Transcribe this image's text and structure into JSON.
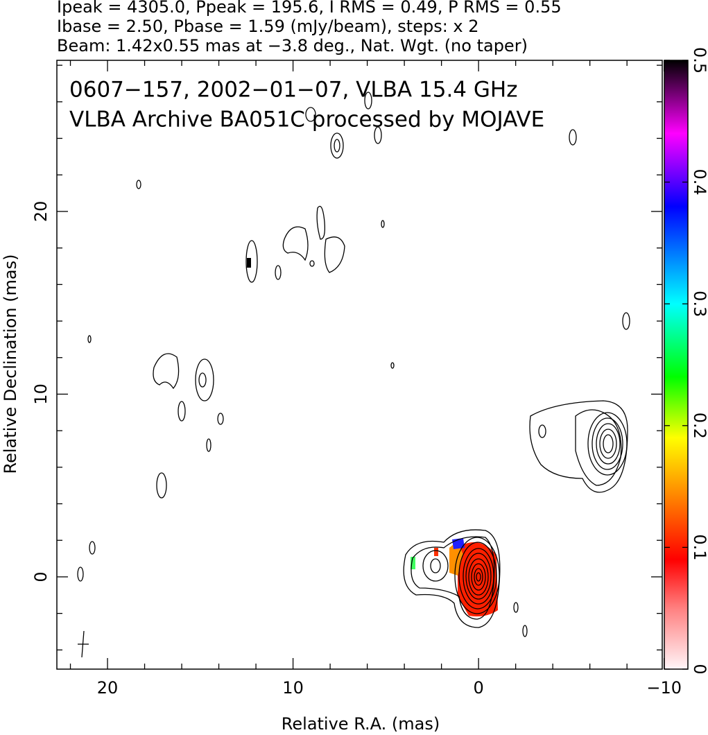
{
  "chart_data": {
    "type": "contour-map",
    "title_lines": [
      "Ipeak = 4305.0, Ppeak = 195.6, I RMS = 0.49, P RMS = 0.55",
      "Ibase = 2.50, Pbase = 1.59 (mJy/beam), steps: x 2",
      "Beam: 1.42x0.55 mas at −3.8 deg., Nat. Wgt. (no taper)"
    ],
    "annotations": [
      "0607−157, 2002−01−07, VLBA 15.4 GHz",
      "VLBA Archive BA051C processed by MOJAVE"
    ],
    "xlabel": "Relative R.A. (mas)",
    "ylabel": "Relative Declination (mas)",
    "xlim": [
      22.73,
      -9.9
    ],
    "ylim": [
      -5.05,
      28.27
    ],
    "xticks": [
      20,
      10,
      0,
      {
        "value": -10,
        "label": "−10"
      }
    ],
    "yticks": [
      0,
      10,
      20
    ],
    "xminorticks": [
      22,
      18,
      16,
      14,
      12,
      8,
      6,
      4,
      2,
      -2,
      -4,
      -6,
      -8
    ],
    "yminorticks": [
      -4,
      -2,
      2,
      4,
      6,
      8,
      12,
      14,
      16,
      18,
      22,
      24,
      26,
      28
    ],
    "colorbar": {
      "lim": [
        0,
        0.5
      ],
      "ticks": [
        0,
        0.1,
        0.2,
        0.3,
        0.4,
        0.5
      ],
      "stops": [
        {
          "value": 0,
          "color": "#fff5f8"
        },
        {
          "value": 0.05,
          "color": "#ff8080"
        },
        {
          "value": 0.09,
          "color": "#ff0000"
        },
        {
          "value": 0.14,
          "color": "#ff8000"
        },
        {
          "value": 0.19,
          "color": "#ffff00"
        },
        {
          "value": 0.24,
          "color": "#00ff00"
        },
        {
          "value": 0.3,
          "color": "#00ffff"
        },
        {
          "value": 0.38,
          "color": "#0000ff"
        },
        {
          "value": 0.44,
          "color": "#ff00ff"
        },
        {
          "value": 0.5,
          "color": "#000000"
        }
      ]
    }
  }
}
